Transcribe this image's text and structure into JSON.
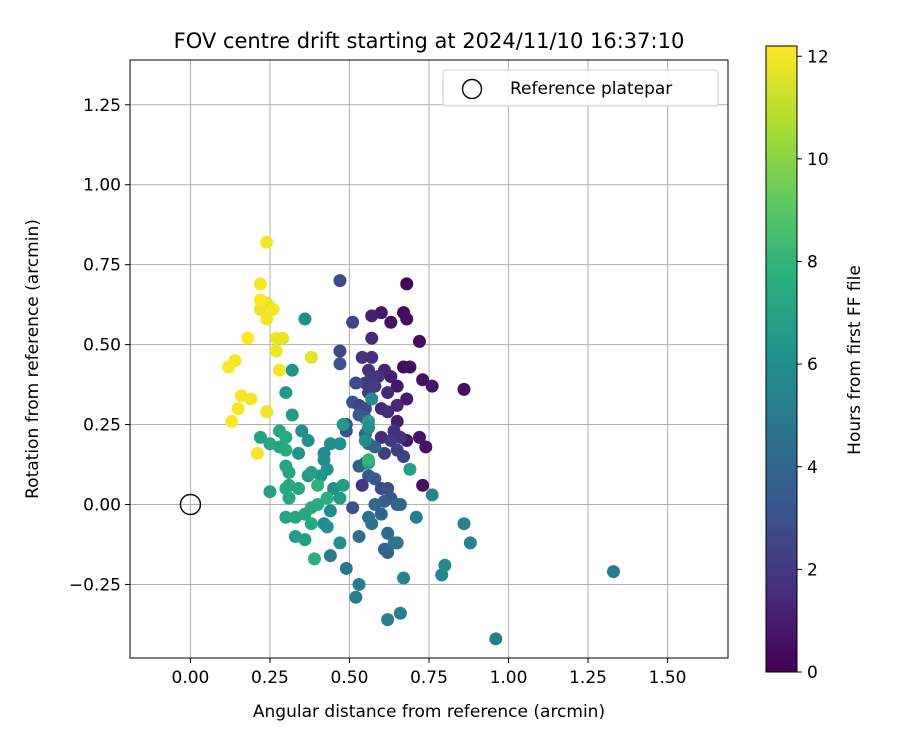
{
  "chart_data": {
    "type": "scatter",
    "title": "FOV centre drift starting at 2024/11/10 16:37:10",
    "xlabel": "Angular distance from reference (arcmin)",
    "ylabel": "Rotation from reference (arcmin)",
    "xlim": [
      -0.19,
      1.69
    ],
    "ylim": [
      -0.48,
      1.39
    ],
    "xticks": [
      0.0,
      0.25,
      0.5,
      0.75,
      1.0,
      1.25,
      1.5
    ],
    "xtick_labels": [
      "0.00",
      "0.25",
      "0.50",
      "0.75",
      "1.00",
      "1.25",
      "1.50"
    ],
    "yticks": [
      -0.25,
      0.0,
      0.25,
      0.5,
      0.75,
      1.0,
      1.25
    ],
    "ytick_labels": [
      "−0.25",
      "0.00",
      "0.25",
      "0.50",
      "0.75",
      "1.00",
      "1.25"
    ],
    "grid": true,
    "legend": {
      "position": "top-right",
      "entries": [
        "Reference platepar"
      ]
    },
    "reference_point": {
      "x": 0.0,
      "y": 0.0
    },
    "colorbar": {
      "label": "Hours from first FF file",
      "range": [
        0,
        12.2
      ],
      "ticks": [
        0,
        2,
        4,
        6,
        8,
        10,
        12
      ],
      "colormap": "viridis"
    },
    "series": [
      {
        "color_by": "hours",
        "points": [
          {
            "x": 0.68,
            "y": 0.69,
            "h": 0.2
          },
          {
            "x": 0.67,
            "y": 0.6,
            "h": 0.3
          },
          {
            "x": 0.68,
            "y": 0.58,
            "h": 0.4
          },
          {
            "x": 0.63,
            "y": 0.57,
            "h": 0.5
          },
          {
            "x": 0.6,
            "y": 0.6,
            "h": 0.8
          },
          {
            "x": 0.57,
            "y": 0.59,
            "h": 1.0
          },
          {
            "x": 0.72,
            "y": 0.51,
            "h": 0.4
          },
          {
            "x": 0.67,
            "y": 0.43,
            "h": 0.3
          },
          {
            "x": 0.69,
            "y": 0.43,
            "h": 0.5
          },
          {
            "x": 0.73,
            "y": 0.39,
            "h": 0.6
          },
          {
            "x": 0.76,
            "y": 0.37,
            "h": 0.7
          },
          {
            "x": 0.86,
            "y": 0.36,
            "h": 0.6
          },
          {
            "x": 0.65,
            "y": 0.37,
            "h": 0.8
          },
          {
            "x": 0.63,
            "y": 0.4,
            "h": 1.0
          },
          {
            "x": 0.61,
            "y": 0.42,
            "h": 1.2
          },
          {
            "x": 0.68,
            "y": 0.33,
            "h": 0.9
          },
          {
            "x": 0.65,
            "y": 0.26,
            "h": 1.0
          },
          {
            "x": 0.72,
            "y": 0.21,
            "h": 0.7
          },
          {
            "x": 0.74,
            "y": 0.18,
            "h": 0.6
          },
          {
            "x": 0.68,
            "y": 0.2,
            "h": 0.8
          },
          {
            "x": 0.73,
            "y": 0.06,
            "h": 0.5
          },
          {
            "x": 0.6,
            "y": 0.3,
            "h": 1.3
          },
          {
            "x": 0.6,
            "y": 0.21,
            "h": 1.5
          },
          {
            "x": 0.57,
            "y": 0.52,
            "h": 1.4
          },
          {
            "x": 0.57,
            "y": 0.46,
            "h": 1.6
          },
          {
            "x": 0.54,
            "y": 0.46,
            "h": 1.8
          },
          {
            "x": 0.56,
            "y": 0.42,
            "h": 1.7
          },
          {
            "x": 0.59,
            "y": 0.4,
            "h": 1.6
          },
          {
            "x": 0.57,
            "y": 0.4,
            "h": 1.9
          },
          {
            "x": 0.55,
            "y": 0.38,
            "h": 2.0
          },
          {
            "x": 0.58,
            "y": 0.37,
            "h": 2.1
          },
          {
            "x": 0.56,
            "y": 0.35,
            "h": 2.2
          },
          {
            "x": 0.62,
            "y": 0.35,
            "h": 1.4
          },
          {
            "x": 0.65,
            "y": 0.31,
            "h": 1.3
          },
          {
            "x": 0.62,
            "y": 0.29,
            "h": 1.5
          },
          {
            "x": 0.64,
            "y": 0.23,
            "h": 1.6
          },
          {
            "x": 0.66,
            "y": 0.21,
            "h": 1.7
          },
          {
            "x": 0.63,
            "y": 0.2,
            "h": 2.0
          },
          {
            "x": 0.65,
            "y": 0.17,
            "h": 2.2
          },
          {
            "x": 0.67,
            "y": 0.15,
            "h": 2.4
          },
          {
            "x": 0.61,
            "y": 0.16,
            "h": 2.3
          },
          {
            "x": 0.47,
            "y": 0.7,
            "h": 2.8
          },
          {
            "x": 0.51,
            "y": 0.57,
            "h": 2.6
          },
          {
            "x": 0.47,
            "y": 0.48,
            "h": 2.7
          },
          {
            "x": 0.47,
            "y": 0.44,
            "h": 3.0
          },
          {
            "x": 0.52,
            "y": 0.38,
            "h": 2.9
          },
          {
            "x": 0.51,
            "y": 0.32,
            "h": 3.1
          },
          {
            "x": 0.53,
            "y": 0.31,
            "h": 2.5
          },
          {
            "x": 0.55,
            "y": 0.3,
            "h": 2.6
          },
          {
            "x": 0.49,
            "y": 0.25,
            "h": 2.9
          },
          {
            "x": 0.49,
            "y": 0.23,
            "h": 3.2
          },
          {
            "x": 0.53,
            "y": 0.28,
            "h": 3.4
          },
          {
            "x": 0.55,
            "y": 0.27,
            "h": 3.5
          },
          {
            "x": 0.55,
            "y": 0.22,
            "h": 3.7
          },
          {
            "x": 0.56,
            "y": 0.19,
            "h": 3.8
          },
          {
            "x": 0.58,
            "y": 0.18,
            "h": 3.9
          },
          {
            "x": 0.55,
            "y": 0.13,
            "h": 3.3
          },
          {
            "x": 0.53,
            "y": 0.12,
            "h": 3.6
          },
          {
            "x": 0.56,
            "y": 0.09,
            "h": 3.4
          },
          {
            "x": 0.58,
            "y": 0.08,
            "h": 3.5
          },
          {
            "x": 0.54,
            "y": 0.06,
            "h": 2.0
          },
          {
            "x": 0.6,
            "y": 0.05,
            "h": 2.8
          },
          {
            "x": 0.62,
            "y": 0.05,
            "h": 3.0
          },
          {
            "x": 0.63,
            "y": 0.02,
            "h": 3.2
          },
          {
            "x": 0.61,
            "y": 0.01,
            "h": 3.6
          },
          {
            "x": 0.65,
            "y": 0.0,
            "h": 3.8
          },
          {
            "x": 0.66,
            "y": 0.0,
            "h": 4.0
          },
          {
            "x": 0.58,
            "y": 0.0,
            "h": 4.1
          },
          {
            "x": 0.6,
            "y": -0.03,
            "h": 3.9
          },
          {
            "x": 0.51,
            "y": -0.01,
            "h": 3.0
          },
          {
            "x": 0.56,
            "y": -0.04,
            "h": 4.4
          },
          {
            "x": 0.57,
            "y": -0.06,
            "h": 4.6
          },
          {
            "x": 0.62,
            "y": -0.09,
            "h": 4.2
          },
          {
            "x": 0.61,
            "y": -0.14,
            "h": 3.8
          },
          {
            "x": 0.62,
            "y": -0.15,
            "h": 4.0
          },
          {
            "x": 0.64,
            "y": -0.12,
            "h": 4.6
          },
          {
            "x": 0.65,
            "y": -0.12,
            "h": 4.7
          },
          {
            "x": 0.53,
            "y": -0.1,
            "h": 4.5
          },
          {
            "x": 0.49,
            "y": -0.2,
            "h": 4.8
          },
          {
            "x": 0.53,
            "y": -0.25,
            "h": 5.0
          },
          {
            "x": 0.52,
            "y": -0.29,
            "h": 5.1
          },
          {
            "x": 0.44,
            "y": -0.16,
            "h": 4.9
          },
          {
            "x": 0.62,
            "y": -0.36,
            "h": 5.2
          },
          {
            "x": 0.66,
            "y": -0.34,
            "h": 5.3
          },
          {
            "x": 0.67,
            "y": -0.23,
            "h": 5.4
          },
          {
            "x": 0.71,
            "y": -0.04,
            "h": 5.2
          },
          {
            "x": 0.76,
            "y": 0.03,
            "h": 5.5
          },
          {
            "x": 0.79,
            "y": -0.22,
            "h": 5.6
          },
          {
            "x": 0.8,
            "y": -0.19,
            "h": 5.7
          },
          {
            "x": 0.86,
            "y": -0.06,
            "h": 5.3
          },
          {
            "x": 0.88,
            "y": -0.12,
            "h": 5.4
          },
          {
            "x": 0.96,
            "y": -0.42,
            "h": 5.2
          },
          {
            "x": 1.33,
            "y": -0.21,
            "h": 5.0
          },
          {
            "x": 0.69,
            "y": 0.11,
            "h": 6.8
          },
          {
            "x": 0.56,
            "y": 0.13,
            "h": 7.0
          },
          {
            "x": 0.56,
            "y": 0.26,
            "h": 6.6
          },
          {
            "x": 0.57,
            "y": 0.33,
            "h": 5.8
          },
          {
            "x": 0.56,
            "y": 0.24,
            "h": 5.9
          },
          {
            "x": 0.55,
            "y": 0.2,
            "h": 6.0
          },
          {
            "x": 0.48,
            "y": 0.25,
            "h": 6.4
          },
          {
            "x": 0.47,
            "y": 0.19,
            "h": 6.2
          },
          {
            "x": 0.44,
            "y": 0.19,
            "h": 6.0
          },
          {
            "x": 0.42,
            "y": 0.16,
            "h": 5.8
          },
          {
            "x": 0.42,
            "y": 0.14,
            "h": 6.0
          },
          {
            "x": 0.43,
            "y": 0.11,
            "h": 6.2
          },
          {
            "x": 0.41,
            "y": 0.09,
            "h": 6.3
          },
          {
            "x": 0.45,
            "y": 0.05,
            "h": 6.1
          },
          {
            "x": 0.47,
            "y": 0.02,
            "h": 6.5
          },
          {
            "x": 0.48,
            "y": 0.06,
            "h": 6.6
          },
          {
            "x": 0.44,
            "y": -0.02,
            "h": 5.9
          },
          {
            "x": 0.42,
            "y": -0.06,
            "h": 5.8
          },
          {
            "x": 0.43,
            "y": -0.07,
            "h": 6.0
          },
          {
            "x": 0.47,
            "y": -0.12,
            "h": 6.1
          },
          {
            "x": 0.36,
            "y": 0.58,
            "h": 6.0
          },
          {
            "x": 0.32,
            "y": 0.42,
            "h": 6.3
          },
          {
            "x": 0.3,
            "y": 0.35,
            "h": 6.5
          },
          {
            "x": 0.32,
            "y": 0.28,
            "h": 6.6
          },
          {
            "x": 0.35,
            "y": 0.23,
            "h": 6.0
          },
          {
            "x": 0.37,
            "y": 0.2,
            "h": 6.1
          },
          {
            "x": 0.34,
            "y": 0.16,
            "h": 6.3
          },
          {
            "x": 0.37,
            "y": 0.09,
            "h": 6.5
          },
          {
            "x": 0.38,
            "y": 0.1,
            "h": 6.8
          },
          {
            "x": 0.31,
            "y": 0.1,
            "h": 7.1
          },
          {
            "x": 0.3,
            "y": 0.12,
            "h": 7.2
          },
          {
            "x": 0.31,
            "y": 0.06,
            "h": 7.3
          },
          {
            "x": 0.31,
            "y": 0.02,
            "h": 7.1
          },
          {
            "x": 0.34,
            "y": 0.05,
            "h": 7.2
          },
          {
            "x": 0.3,
            "y": 0.05,
            "h": 7.4
          },
          {
            "x": 0.22,
            "y": 0.21,
            "h": 7.0
          },
          {
            "x": 0.25,
            "y": 0.19,
            "h": 7.2
          },
          {
            "x": 0.28,
            "y": 0.18,
            "h": 7.0
          },
          {
            "x": 0.28,
            "y": 0.23,
            "h": 7.3
          },
          {
            "x": 0.3,
            "y": 0.21,
            "h": 7.4
          },
          {
            "x": 0.3,
            "y": 0.17,
            "h": 7.5
          },
          {
            "x": 0.25,
            "y": 0.04,
            "h": 6.9
          },
          {
            "x": 0.3,
            "y": -0.04,
            "h": 7.0
          },
          {
            "x": 0.33,
            "y": -0.04,
            "h": 7.1
          },
          {
            "x": 0.36,
            "y": -0.03,
            "h": 7.2
          },
          {
            "x": 0.33,
            "y": -0.1,
            "h": 6.8
          },
          {
            "x": 0.36,
            "y": -0.11,
            "h": 6.9
          },
          {
            "x": 0.38,
            "y": -0.06,
            "h": 7.3
          },
          {
            "x": 0.38,
            "y": -0.01,
            "h": 7.4
          },
          {
            "x": 0.4,
            "y": 0.0,
            "h": 7.5
          },
          {
            "x": 0.43,
            "y": 0.02,
            "h": 7.6
          },
          {
            "x": 0.39,
            "y": -0.17,
            "h": 7.7
          },
          {
            "x": 0.4,
            "y": 0.06,
            "h": 7.8
          },
          {
            "x": 0.56,
            "y": 0.14,
            "h": 8.0
          },
          {
            "x": 0.24,
            "y": 0.82,
            "h": 12.0
          },
          {
            "x": 0.22,
            "y": 0.69,
            "h": 12.1
          },
          {
            "x": 0.24,
            "y": 0.63,
            "h": 11.8
          },
          {
            "x": 0.26,
            "y": 0.61,
            "h": 12.0
          },
          {
            "x": 0.22,
            "y": 0.61,
            "h": 11.9
          },
          {
            "x": 0.24,
            "y": 0.58,
            "h": 12.0
          },
          {
            "x": 0.18,
            "y": 0.52,
            "h": 12.2
          },
          {
            "x": 0.27,
            "y": 0.52,
            "h": 11.9
          },
          {
            "x": 0.29,
            "y": 0.52,
            "h": 11.8
          },
          {
            "x": 0.27,
            "y": 0.48,
            "h": 11.9
          },
          {
            "x": 0.38,
            "y": 0.46,
            "h": 11.7
          },
          {
            "x": 0.14,
            "y": 0.45,
            "h": 12.1
          },
          {
            "x": 0.12,
            "y": 0.43,
            "h": 12.2
          },
          {
            "x": 0.28,
            "y": 0.42,
            "h": 12.0
          },
          {
            "x": 0.16,
            "y": 0.34,
            "h": 12.1
          },
          {
            "x": 0.19,
            "y": 0.33,
            "h": 12.0
          },
          {
            "x": 0.15,
            "y": 0.3,
            "h": 12.1
          },
          {
            "x": 0.24,
            "y": 0.29,
            "h": 11.9
          },
          {
            "x": 0.13,
            "y": 0.26,
            "h": 12.2
          },
          {
            "x": 0.21,
            "y": 0.16,
            "h": 12.0
          },
          {
            "x": 0.22,
            "y": 0.64,
            "h": 12.2
          }
        ]
      }
    ]
  }
}
